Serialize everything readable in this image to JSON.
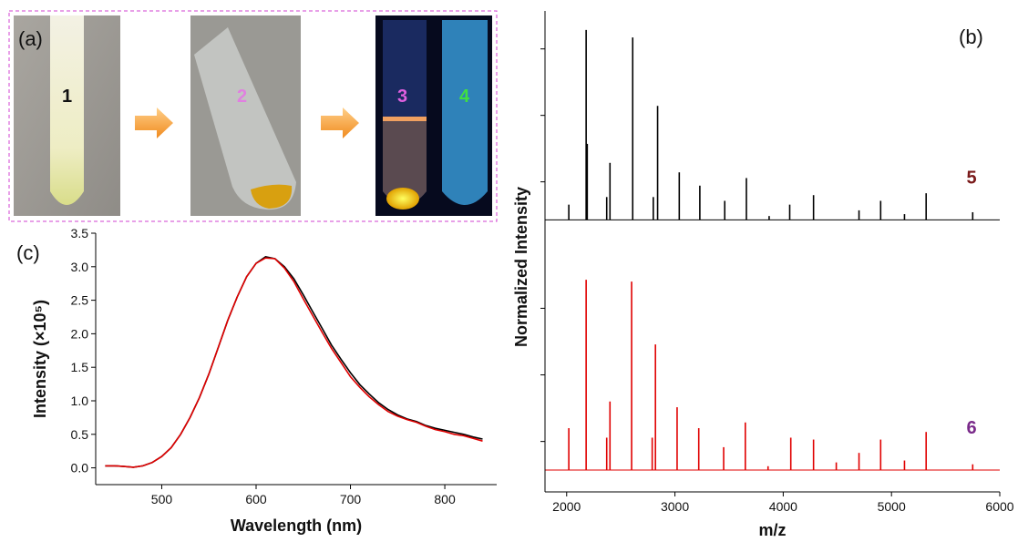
{
  "panel_a": {
    "label": "(a)",
    "tubes": [
      "1",
      "2",
      "3",
      "4"
    ]
  },
  "panel_b": {
    "label": "(b)",
    "ylabel": "Normalized Intensity"
  },
  "panel_c": {
    "label": "(c)"
  },
  "chart_data": [
    {
      "type": "line",
      "xlabel": "Wavelength (nm)",
      "ylabel": "Intensity (×10⁵)",
      "x": [
        440,
        450,
        460,
        470,
        480,
        490,
        500,
        510,
        520,
        530,
        540,
        550,
        560,
        570,
        580,
        590,
        600,
        610,
        620,
        630,
        640,
        650,
        660,
        670,
        680,
        690,
        700,
        710,
        720,
        730,
        740,
        750,
        760,
        770,
        780,
        790,
        800,
        810,
        820,
        830,
        840
      ],
      "series": [
        {
          "color": "#000000",
          "values": [
            0.03,
            0.03,
            0.02,
            0.01,
            0.03,
            0.08,
            0.17,
            0.3,
            0.5,
            0.75,
            1.05,
            1.4,
            1.8,
            2.2,
            2.55,
            2.85,
            3.05,
            3.15,
            3.12,
            3.0,
            2.82,
            2.58,
            2.33,
            2.08,
            1.83,
            1.62,
            1.42,
            1.24,
            1.1,
            0.97,
            0.87,
            0.79,
            0.73,
            0.69,
            0.63,
            0.59,
            0.56,
            0.53,
            0.5,
            0.46,
            0.43
          ]
        },
        {
          "color": "#e00000",
          "values": [
            0.03,
            0.03,
            0.02,
            0.01,
            0.03,
            0.08,
            0.17,
            0.3,
            0.5,
            0.75,
            1.05,
            1.4,
            1.8,
            2.2,
            2.55,
            2.85,
            3.05,
            3.13,
            3.12,
            2.98,
            2.78,
            2.52,
            2.27,
            2.02,
            1.78,
            1.57,
            1.36,
            1.2,
            1.06,
            0.94,
            0.84,
            0.77,
            0.72,
            0.68,
            0.62,
            0.57,
            0.54,
            0.5,
            0.48,
            0.44,
            0.4
          ]
        }
      ],
      "xlim": [
        430,
        855
      ],
      "ylim": [
        -0.25,
        3.5
      ],
      "xticks": [
        500,
        600,
        700,
        800
      ],
      "yticks": [
        {
          "value": 0,
          "label": "0.0"
        },
        {
          "value": 0.5,
          "label": "0.5"
        },
        {
          "value": 1,
          "label": "1.0"
        },
        {
          "value": 1.5,
          "label": "1.5"
        },
        {
          "value": 2,
          "label": "2.0"
        },
        {
          "value": 2.5,
          "label": "2.5"
        },
        {
          "value": 3,
          "label": "3.0"
        },
        {
          "value": 3.5,
          "label": "3.5"
        }
      ]
    },
    {
      "type": "stick",
      "annotation": "5",
      "color": "#000000",
      "x": [
        2020,
        2180,
        2190,
        2370,
        2400,
        2610,
        2800,
        2840,
        3040,
        3230,
        3460,
        3660,
        3870,
        4060,
        4280,
        4700,
        4900,
        5120,
        5320,
        5750
      ],
      "values": [
        0.08,
        1.0,
        0.4,
        0.12,
        0.3,
        0.96,
        0.12,
        0.6,
        0.25,
        0.18,
        0.1,
        0.22,
        0.02,
        0.08,
        0.13,
        0.05,
        0.1,
        0.03,
        0.14,
        0.04
      ],
      "xlim": [
        1800,
        6000
      ],
      "ylim": [
        -0.08,
        1.1
      ],
      "yticks": [
        0.2,
        0.55,
        0.9
      ]
    },
    {
      "type": "stick",
      "annotation": "6",
      "color": "#e00000",
      "xlabel": "m/z",
      "x": [
        2020,
        2180,
        2370,
        2400,
        2600,
        2790,
        2820,
        3020,
        3220,
        3450,
        3650,
        3860,
        4070,
        4280,
        4490,
        4700,
        4900,
        5120,
        5320,
        5750
      ],
      "values": [
        0.22,
        1.0,
        0.17,
        0.36,
        0.99,
        0.17,
        0.66,
        0.33,
        0.22,
        0.12,
        0.25,
        0.02,
        0.17,
        0.16,
        0.04,
        0.09,
        0.16,
        0.05,
        0.2,
        0.03
      ],
      "xlim": [
        1800,
        6000
      ],
      "ylim": [
        -0.115,
        1.235
      ],
      "yticks": [
        0.15,
        0.5,
        0.85
      ],
      "xticks": [
        2000,
        3000,
        4000,
        5000,
        6000
      ]
    }
  ]
}
